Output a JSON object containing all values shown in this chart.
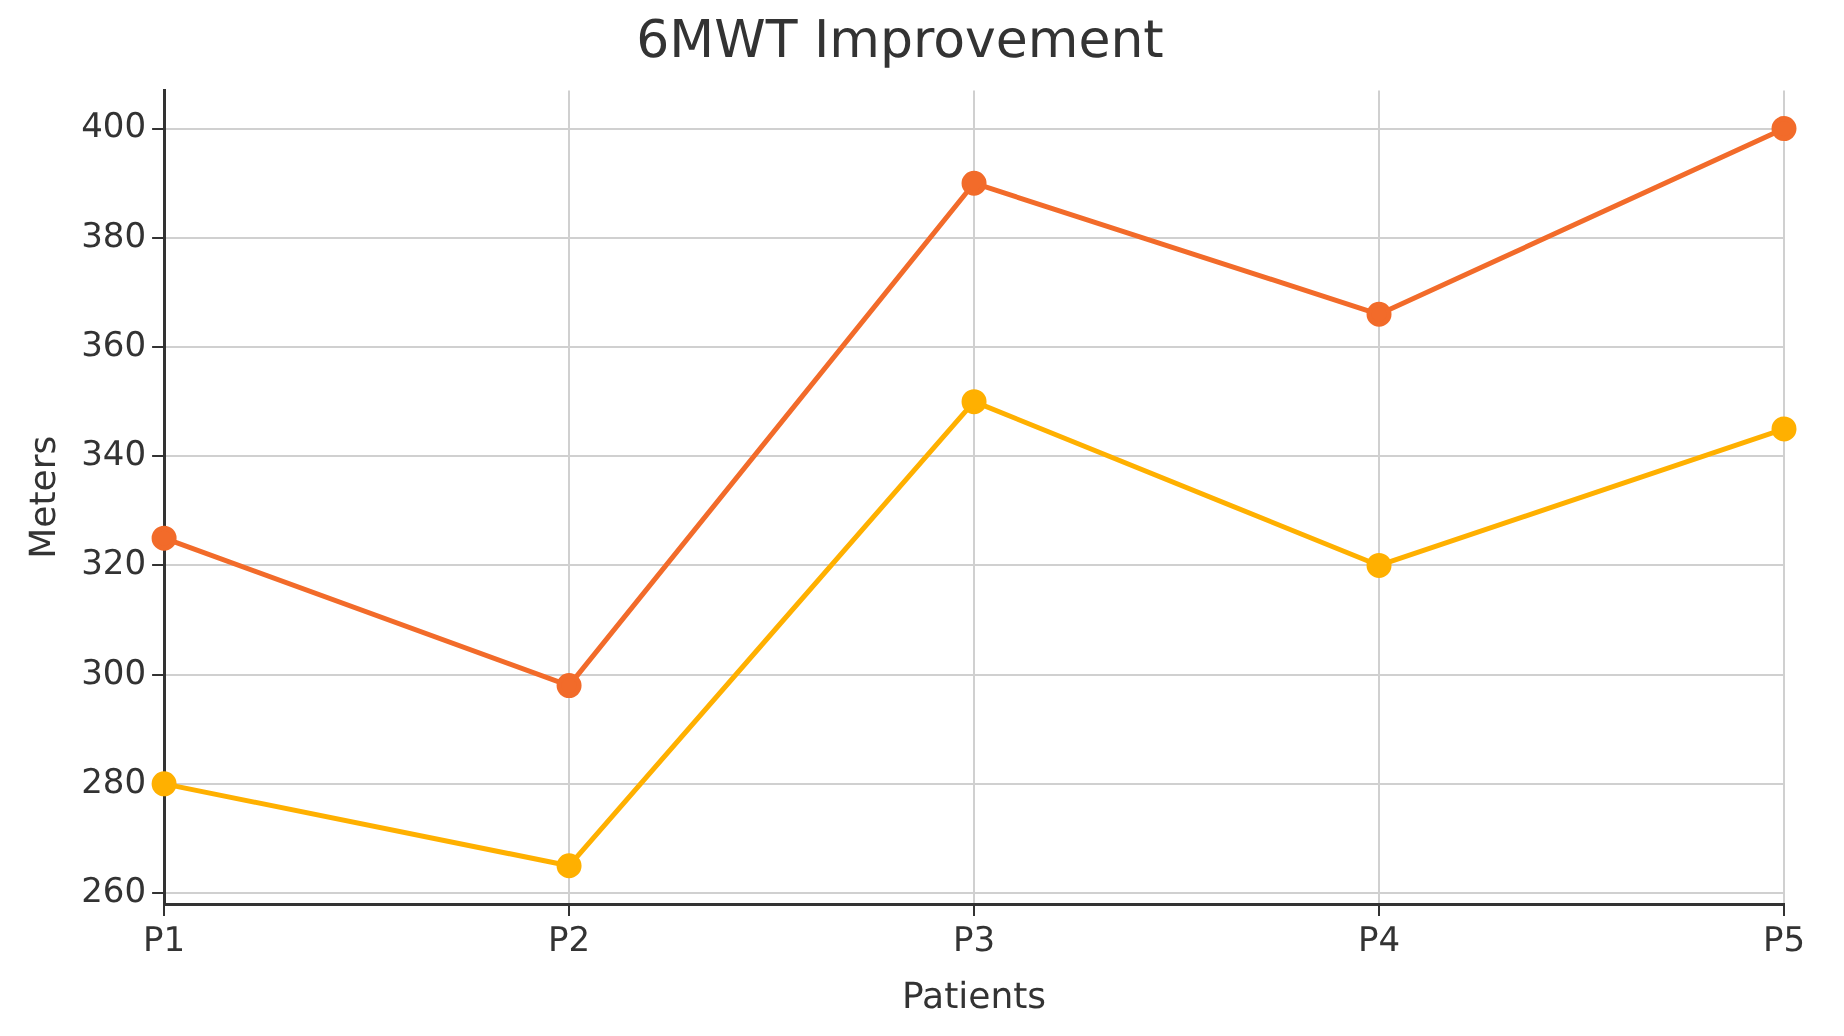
{
  "chart_data": {
    "type": "line",
    "title": "6MWT Improvement",
    "xlabel": "Patients",
    "ylabel": "Meters",
    "categories": [
      "P1",
      "P2",
      "P3",
      "P4",
      "P5"
    ],
    "series": [
      {
        "color": "#f26b2a",
        "values": [
          325,
          298,
          390,
          366,
          400
        ]
      },
      {
        "color": "#ffb000",
        "values": [
          280,
          265,
          350,
          320,
          345
        ]
      }
    ],
    "ylim": [
      258,
      407
    ],
    "yticks": [
      260,
      280,
      300,
      320,
      340,
      360,
      380,
      400
    ],
    "grid": true,
    "legend": false,
    "marker": "circle",
    "line_style": "solid"
  }
}
